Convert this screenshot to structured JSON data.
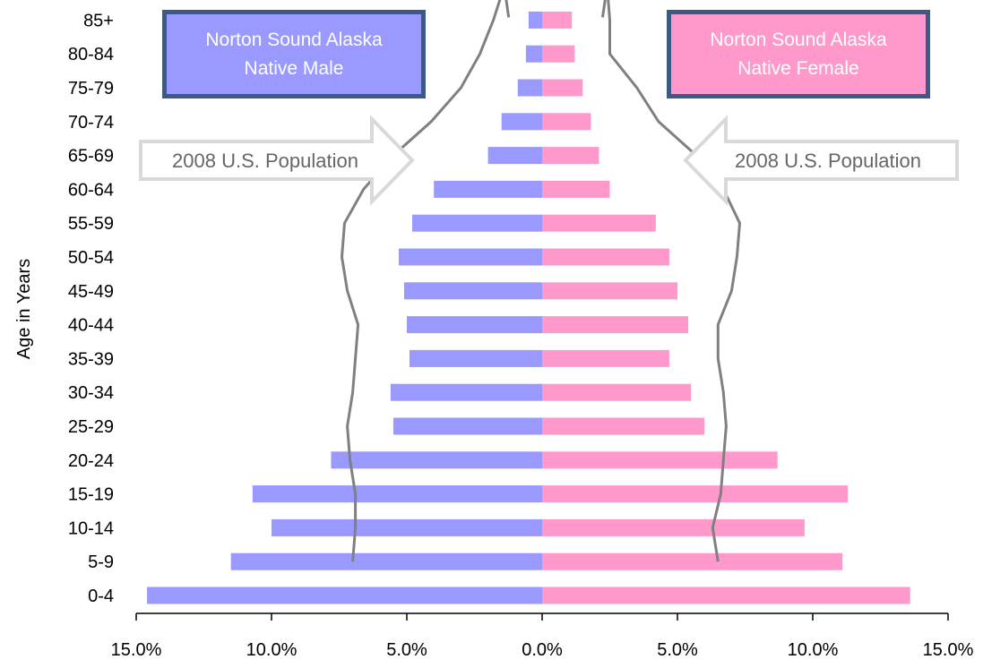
{
  "chart_data": {
    "type": "bar",
    "orientation": "horizontal",
    "layout": "population-pyramid",
    "ylabel": "Age in Years",
    "categories": [
      "0-4",
      "5-9",
      "10-14",
      "15-19",
      "20-24",
      "25-29",
      "30-34",
      "35-39",
      "40-44",
      "45-49",
      "50-54",
      "55-59",
      "60-64",
      "65-69",
      "70-74",
      "75-79",
      "80-84",
      "85+"
    ],
    "series": [
      {
        "name": "Norton Sound Alaska Native Male",
        "side": "left",
        "color": "#9999ff",
        "values": [
          14.6,
          11.5,
          10.0,
          10.7,
          7.8,
          5.5,
          5.6,
          4.9,
          5.0,
          5.1,
          5.3,
          4.8,
          4.0,
          2.0,
          1.5,
          0.9,
          0.6,
          0.5
        ]
      },
      {
        "name": "Norton Sound Alaska Native Female",
        "side": "right",
        "color": "#ff99cc",
        "values": [
          13.6,
          11.1,
          9.7,
          11.3,
          8.7,
          6.0,
          5.5,
          4.7,
          5.4,
          5.0,
          4.7,
          4.2,
          2.5,
          2.1,
          1.8,
          1.5,
          1.2,
          1.1
        ]
      }
    ],
    "reference_lines": [
      {
        "name": "2008 U.S. Population",
        "side": "left",
        "color": "#808080",
        "start_index": 1,
        "values": [
          7.0,
          6.9,
          6.9,
          7.1,
          7.2,
          7.0,
          6.9,
          6.8,
          7.2,
          7.4,
          7.3,
          6.6,
          5.5,
          4.1,
          3.0,
          2.3,
          1.8,
          1.4
        ]
      },
      {
        "name": "2008 U.S. Population",
        "side": "right",
        "color": "#808080",
        "start_index": 1,
        "values": [
          6.5,
          6.3,
          6.6,
          6.7,
          6.8,
          6.7,
          6.5,
          6.5,
          7.0,
          7.2,
          7.3,
          6.7,
          5.7,
          4.3,
          3.5,
          2.5,
          2.5,
          2.4
        ]
      }
    ],
    "xticks": [
      "15.0%",
      "10.0%",
      "5.0%",
      "0.0%",
      "5.0%",
      "10.0%",
      "15.0%"
    ],
    "xlim": [
      -15,
      15
    ],
    "grid": false,
    "legend": {
      "male_line1": "Norton Sound Alaska",
      "male_line2": "Native Male",
      "female_line1": "Norton Sound Alaska",
      "female_line2": "Native Female",
      "male_color": "#9999ff",
      "female_color": "#ff99cc",
      "border_color": "#3b5a86"
    },
    "arrow_label_left": "2008 U.S. Population",
    "arrow_label_right": "2008 U.S. Population"
  }
}
